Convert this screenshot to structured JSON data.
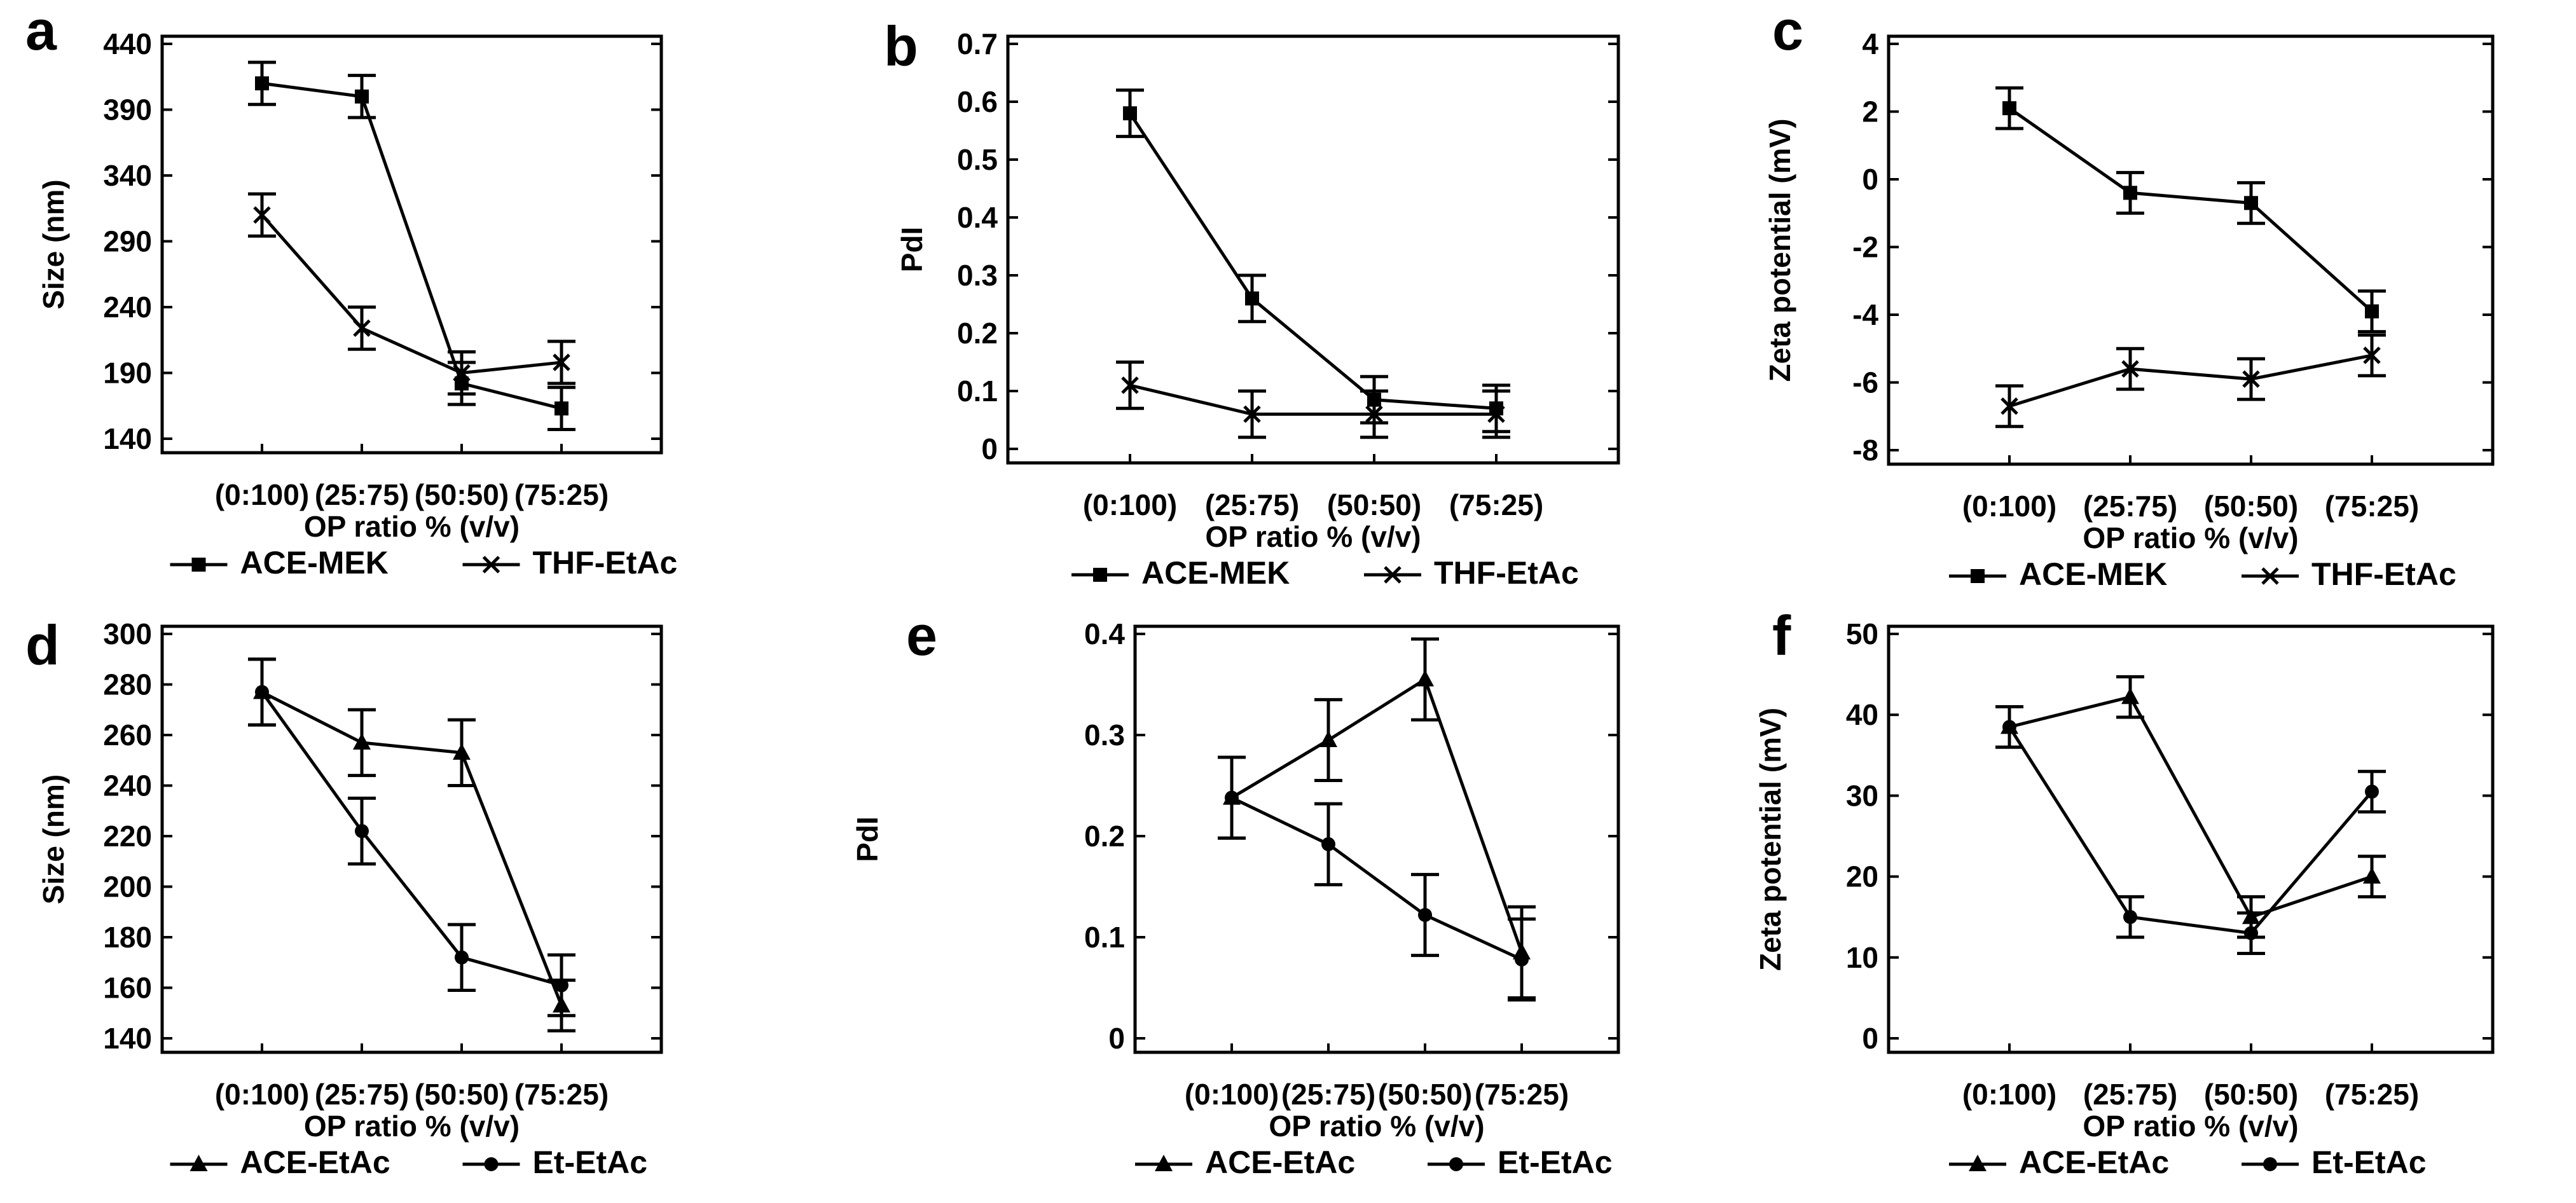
{
  "chart_data": [
    {
      "panel": "a",
      "type": "line",
      "categories": [
        "(0:100)",
        "(25:75)",
        "(50:50)",
        "(75:25)"
      ],
      "xlabel": "OP ratio % (v/v)",
      "ylabel": "Size (nm)",
      "ylim": [
        140,
        440
      ],
      "yticks": [
        140,
        190,
        240,
        290,
        340,
        390,
        440
      ],
      "series": [
        {
          "name": "ACE-MEK",
          "marker": "square",
          "values": [
            410,
            400,
            182,
            163
          ],
          "errors": [
            16,
            16,
            16,
            16
          ]
        },
        {
          "name": "THF-EtAc",
          "marker": "cross",
          "values": [
            310,
            224,
            190,
            198
          ],
          "errors": [
            16,
            16,
            16,
            16
          ]
        }
      ]
    },
    {
      "panel": "b",
      "type": "line",
      "categories": [
        "(0:100)",
        "(25:75)",
        "(50:50)",
        "(75:25)"
      ],
      "xlabel": "OP ratio % (v/v)",
      "ylabel": "PdI",
      "ylim": [
        0,
        0.7
      ],
      "yticks": [
        0,
        0.1,
        0.2,
        0.3,
        0.4,
        0.5,
        0.6,
        0.7
      ],
      "series": [
        {
          "name": "ACE-MEK",
          "marker": "square",
          "values": [
            0.58,
            0.26,
            0.085,
            0.07
          ],
          "errors": [
            0.04,
            0.04,
            0.04,
            0.04
          ]
        },
        {
          "name": "THF-EtAc",
          "marker": "cross",
          "values": [
            0.11,
            0.06,
            0.06,
            0.06
          ],
          "errors": [
            0.04,
            0.04,
            0.04,
            0.04
          ]
        }
      ]
    },
    {
      "panel": "c",
      "type": "line",
      "categories": [
        "(0:100)",
        "(25:75)",
        "(50:50)",
        "(75:25)"
      ],
      "xlabel": "OP ratio % (v/v)",
      "ylabel": "Zeta potential (mV)",
      "ylim": [
        -8,
        4
      ],
      "yticks": [
        -8,
        -6,
        -4,
        -2,
        0,
        2,
        4
      ],
      "series": [
        {
          "name": "ACE-MEK",
          "marker": "square",
          "values": [
            2.1,
            -0.4,
            -0.7,
            -3.9
          ],
          "errors": [
            0.6,
            0.6,
            0.6,
            0.6
          ]
        },
        {
          "name": "THF-EtAc",
          "marker": "cross",
          "values": [
            -6.7,
            -5.6,
            -5.9,
            -5.2
          ],
          "errors": [
            0.6,
            0.6,
            0.6,
            0.6
          ]
        }
      ]
    },
    {
      "panel": "d",
      "type": "line",
      "categories": [
        "(0:100)",
        "(25:75)",
        "(50:50)",
        "(75:25)"
      ],
      "xlabel": "OP ratio % (v/v)",
      "ylabel": "Size (nm)",
      "ylim": [
        140,
        300
      ],
      "yticks": [
        140,
        160,
        180,
        200,
        220,
        240,
        260,
        280,
        300
      ],
      "series": [
        {
          "name": "ACE-EtAc",
          "marker": "triangle",
          "values": [
            277,
            257,
            253,
            153
          ],
          "errors": [
            13,
            13,
            13,
            10
          ]
        },
        {
          "name": "Et-EtAc",
          "marker": "circle",
          "values": [
            277,
            222,
            172,
            161
          ],
          "errors": [
            13,
            13,
            13,
            12
          ]
        }
      ]
    },
    {
      "panel": "e",
      "type": "line",
      "categories": [
        "(0:100)",
        "(25:75)",
        "(50:50)",
        "(75:25)"
      ],
      "xlabel": "OP ratio % (v/v)",
      "ylabel": "PdI",
      "ylim": [
        0,
        0.4
      ],
      "yticks": [
        0,
        0.1,
        0.2,
        0.3,
        0.4
      ],
      "series": [
        {
          "name": "ACE-EtAc",
          "marker": "triangle",
          "values": [
            0.238,
            0.295,
            0.355,
            0.085
          ],
          "errors": [
            0.04,
            0.04,
            0.04,
            0.045
          ]
        },
        {
          "name": "Et-EtAc",
          "marker": "circle",
          "values": [
            0.238,
            0.192,
            0.122,
            0.078
          ],
          "errors": [
            0.04,
            0.04,
            0.04,
            0.04
          ]
        }
      ]
    },
    {
      "panel": "f",
      "type": "line",
      "categories": [
        "(0:100)",
        "(25:75)",
        "(50:50)",
        "(75:25)"
      ],
      "xlabel": "OP ratio % (v/v)",
      "ylabel": "Zeta potential (mV)",
      "ylim": [
        0,
        50
      ],
      "yticks": [
        0,
        10,
        20,
        30,
        40,
        50
      ],
      "series": [
        {
          "name": "ACE-EtAc",
          "marker": "triangle",
          "values": [
            38.5,
            42.2,
            15,
            20
          ],
          "errors": [
            2.5,
            2.5,
            2.5,
            2.5
          ]
        },
        {
          "name": "Et-EtAc",
          "marker": "circle",
          "values": [
            38.5,
            15,
            13,
            30.5
          ],
          "errors": [
            2.5,
            2.5,
            2.5,
            2.5
          ]
        }
      ]
    }
  ]
}
